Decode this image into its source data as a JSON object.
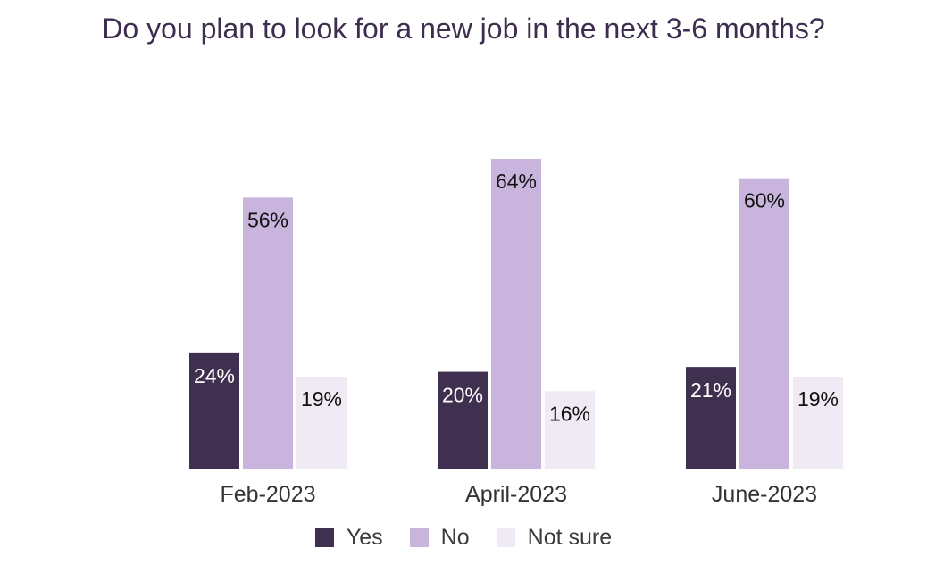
{
  "chart_data": {
    "type": "bar",
    "title": "Do you plan to look for a new job in the next 3-6 months?",
    "categories": [
      "Feb-2023",
      "April-2023",
      "June-2023"
    ],
    "series": [
      {
        "name": "Yes",
        "values": [
          24,
          20,
          21
        ],
        "labels": [
          "24%",
          "20%",
          "21%"
        ],
        "color": "#40304f"
      },
      {
        "name": "No",
        "values": [
          56,
          64,
          60
        ],
        "labels": [
          "56%",
          "64%",
          "60%"
        ],
        "color": "#c8b4dc"
      },
      {
        "name": "Not sure",
        "values": [
          19,
          16,
          19
        ],
        "labels": [
          "19%",
          "16%",
          "19%"
        ],
        "color": "#efeaf3"
      }
    ],
    "ylim": [
      0,
      64
    ],
    "grid": false,
    "legend_position": "bottom"
  }
}
